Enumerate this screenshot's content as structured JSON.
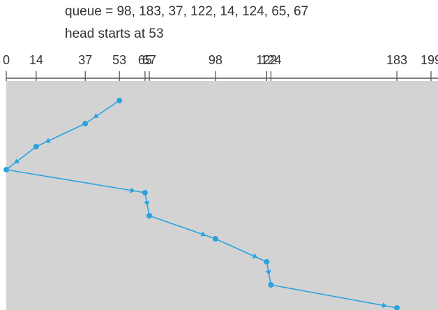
{
  "header": {
    "queue_label": "queue = 98, 183, 37, 122, 14, 124, 65, 67",
    "head_label": "head starts at 53"
  },
  "axis": {
    "min": 0,
    "max": 199,
    "ticks": [
      {
        "value": 0,
        "label": "0"
      },
      {
        "value": 14,
        "label": "14"
      },
      {
        "value": 37,
        "label": "37"
      },
      {
        "value": 53,
        "label": "53"
      },
      {
        "value": 65,
        "label": "65"
      },
      {
        "value": 67,
        "label": "67"
      },
      {
        "value": 98,
        "label": "98"
      },
      {
        "value": 122,
        "label": "122"
      },
      {
        "value": 124,
        "label": "124"
      },
      {
        "value": 183,
        "label": "183"
      },
      {
        "value": 199,
        "label": "199"
      }
    ]
  },
  "path": {
    "visit_order": [
      53,
      37,
      14,
      0,
      65,
      67,
      98,
      122,
      124,
      183
    ]
  },
  "colors": {
    "panel": "#d3d3d3",
    "path": "#2aa3de",
    "axis": "#555555",
    "text": "#333333"
  }
}
